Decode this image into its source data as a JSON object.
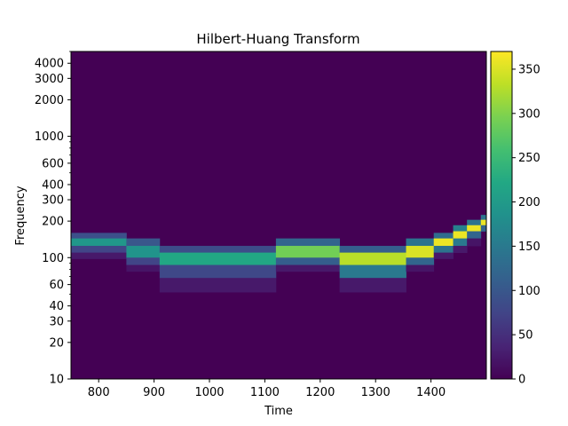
{
  "chart_data": {
    "type": "heatmap",
    "title": "Hilbert-Huang Transform",
    "xlabel": "Time",
    "ylabel": "Frequency",
    "x_scale": "linear",
    "y_scale": "log",
    "xlim": [
      750,
      1500
    ],
    "ylim": [
      10,
      5000
    ],
    "x_ticks": [
      800,
      900,
      1000,
      1100,
      1200,
      1300,
      1400
    ],
    "x_tick_labels": [
      "800",
      "900",
      "1000",
      "1100",
      "1200",
      "1300",
      "1400"
    ],
    "y_ticks": [
      10,
      20,
      30,
      40,
      60,
      100,
      200,
      300,
      400,
      600,
      1000,
      2000,
      3000,
      4000
    ],
    "y_tick_labels": [
      "10",
      "20",
      "30",
      "40",
      "60",
      "100",
      "200",
      "300",
      "400",
      "600",
      "1000",
      "2000",
      "3000",
      "4000"
    ],
    "colormap": "viridis",
    "background_value": 0,
    "colorbar": {
      "range": [
        0,
        370
      ],
      "ticks": [
        0,
        50,
        100,
        150,
        200,
        250,
        300,
        350
      ],
      "tick_labels": [
        "0",
        "50",
        "100",
        "150",
        "200",
        "250",
        "300",
        "350"
      ]
    },
    "cells": [
      {
        "t0": 750,
        "t1": 850,
        "f0": 144,
        "f1": 160,
        "value": 90
      },
      {
        "t0": 750,
        "t1": 850,
        "f0": 125,
        "f1": 144,
        "value": 195
      },
      {
        "t0": 750,
        "t1": 850,
        "f0": 110,
        "f1": 125,
        "value": 75
      },
      {
        "t0": 750,
        "t1": 850,
        "f0": 98,
        "f1": 110,
        "value": 25
      },
      {
        "t0": 850,
        "t1": 910,
        "f0": 125,
        "f1": 144,
        "value": 100
      },
      {
        "t0": 850,
        "t1": 910,
        "f0": 100,
        "f1": 125,
        "value": 190
      },
      {
        "t0": 850,
        "t1": 910,
        "f0": 87,
        "f1": 100,
        "value": 75
      },
      {
        "t0": 850,
        "t1": 910,
        "f0": 77,
        "f1": 87,
        "value": 20
      },
      {
        "t0": 910,
        "t1": 1120,
        "f0": 110,
        "f1": 125,
        "value": 85
      },
      {
        "t0": 910,
        "t1": 1120,
        "f0": 87,
        "f1": 110,
        "value": 220
      },
      {
        "t0": 910,
        "t1": 1120,
        "f0": 68,
        "f1": 87,
        "value": 80
      },
      {
        "t0": 910,
        "t1": 1120,
        "f0": 52,
        "f1": 68,
        "value": 25
      },
      {
        "t0": 1120,
        "t1": 1235,
        "f0": 125,
        "f1": 144,
        "value": 120
      },
      {
        "t0": 1120,
        "t1": 1235,
        "f0": 100,
        "f1": 125,
        "value": 290
      },
      {
        "t0": 1120,
        "t1": 1235,
        "f0": 87,
        "f1": 100,
        "value": 110
      },
      {
        "t0": 1120,
        "t1": 1235,
        "f0": 77,
        "f1": 87,
        "value": 25
      },
      {
        "t0": 1235,
        "t1": 1355,
        "f0": 110,
        "f1": 125,
        "value": 110
      },
      {
        "t0": 1235,
        "t1": 1355,
        "f0": 87,
        "f1": 110,
        "value": 330
      },
      {
        "t0": 1235,
        "t1": 1355,
        "f0": 68,
        "f1": 87,
        "value": 150
      },
      {
        "t0": 1235,
        "t1": 1355,
        "f0": 52,
        "f1": 68,
        "value": 25
      },
      {
        "t0": 1355,
        "t1": 1405,
        "f0": 125,
        "f1": 144,
        "value": 140
      },
      {
        "t0": 1355,
        "t1": 1405,
        "f0": 100,
        "f1": 125,
        "value": 350
      },
      {
        "t0": 1355,
        "t1": 1405,
        "f0": 87,
        "f1": 100,
        "value": 120
      },
      {
        "t0": 1355,
        "t1": 1405,
        "f0": 77,
        "f1": 87,
        "value": 20
      },
      {
        "t0": 1405,
        "t1": 1440,
        "f0": 144,
        "f1": 160,
        "value": 130
      },
      {
        "t0": 1405,
        "t1": 1440,
        "f0": 125,
        "f1": 144,
        "value": 360
      },
      {
        "t0": 1405,
        "t1": 1440,
        "f0": 110,
        "f1": 125,
        "value": 140
      },
      {
        "t0": 1405,
        "t1": 1440,
        "f0": 98,
        "f1": 110,
        "value": 25
      },
      {
        "t0": 1440,
        "t1": 1465,
        "f0": 165,
        "f1": 185,
        "value": 160
      },
      {
        "t0": 1440,
        "t1": 1465,
        "f0": 144,
        "f1": 165,
        "value": 360
      },
      {
        "t0": 1440,
        "t1": 1465,
        "f0": 125,
        "f1": 144,
        "value": 150
      },
      {
        "t0": 1440,
        "t1": 1465,
        "f0": 110,
        "f1": 125,
        "value": 25
      },
      {
        "t0": 1465,
        "t1": 1490,
        "f0": 185,
        "f1": 205,
        "value": 140
      },
      {
        "t0": 1465,
        "t1": 1490,
        "f0": 165,
        "f1": 185,
        "value": 360
      },
      {
        "t0": 1465,
        "t1": 1490,
        "f0": 144,
        "f1": 165,
        "value": 120
      },
      {
        "t0": 1465,
        "t1": 1490,
        "f0": 125,
        "f1": 144,
        "value": 20
      },
      {
        "t0": 1490,
        "t1": 1500,
        "f0": 205,
        "f1": 225,
        "value": 140
      },
      {
        "t0": 1490,
        "t1": 1500,
        "f0": 185,
        "f1": 205,
        "value": 360
      },
      {
        "t0": 1490,
        "t1": 1500,
        "f0": 165,
        "f1": 185,
        "value": 120
      }
    ]
  }
}
